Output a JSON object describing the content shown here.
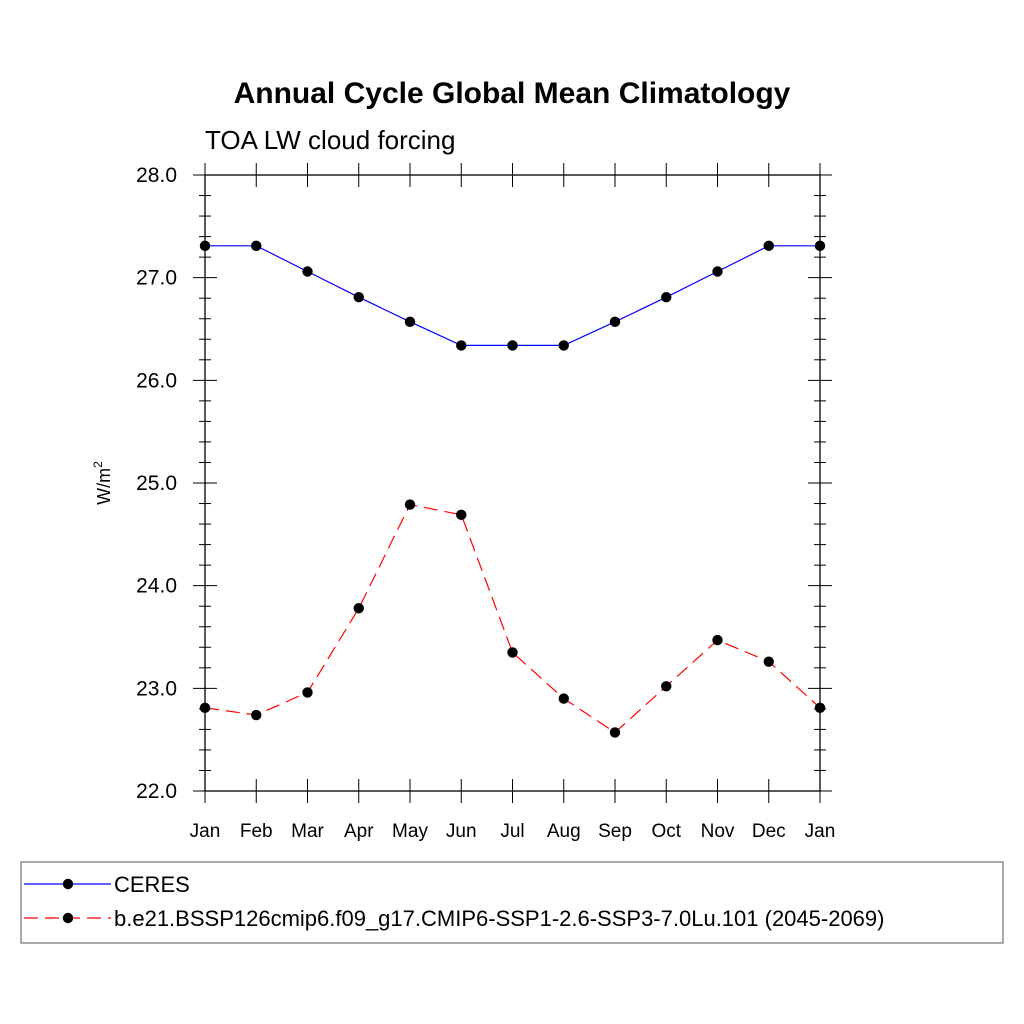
{
  "chart_data": {
    "type": "line",
    "title": "Annual Cycle Global Mean Climatology",
    "subtitle": "TOA LW cloud forcing",
    "xlabel": "",
    "ylabel": "W/m",
    "ylabel_superscript": "2",
    "categories": [
      "Jan",
      "Feb",
      "Mar",
      "Apr",
      "May",
      "Jun",
      "Jul",
      "Aug",
      "Sep",
      "Oct",
      "Nov",
      "Dec",
      "Jan"
    ],
    "ylim": [
      22.0,
      28.0
    ],
    "yticks": [
      "22.0",
      "23.0",
      "24.0",
      "25.0",
      "26.0",
      "27.0",
      "28.0"
    ],
    "grid": false,
    "legend_position": "bottom",
    "series": [
      {
        "name": "CERES",
        "color": "#0000ff",
        "line_style": "solid",
        "marker": "filled-circle",
        "values": [
          27.31,
          27.31,
          27.06,
          26.81,
          26.57,
          26.34,
          26.34,
          26.34,
          26.57,
          26.81,
          27.06,
          27.31,
          27.31
        ]
      },
      {
        "name": "b.e21.BSSP126cmip6.f09_g17.CMIP6-SSP1-2.6-SSP3-7.0Lu.101 (2045-2069)",
        "color": "#ff0000",
        "line_style": "dashed",
        "marker": "filled-circle",
        "values": [
          22.81,
          22.74,
          22.96,
          23.78,
          24.79,
          24.69,
          23.35,
          22.9,
          22.57,
          23.02,
          23.47,
          23.26,
          22.81
        ]
      }
    ]
  }
}
